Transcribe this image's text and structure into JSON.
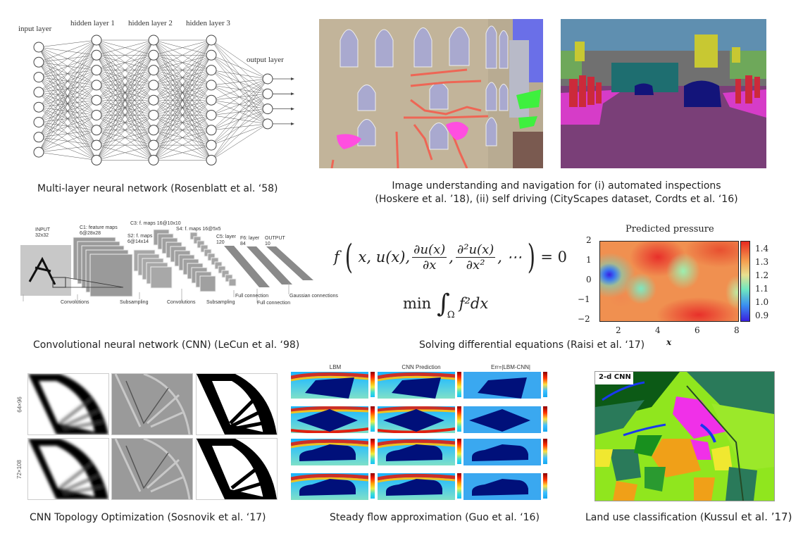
{
  "panels": {
    "mlp": {
      "caption": "Multi-layer neural network (Rosenblatt et al. ‘58)",
      "layer_labels": [
        "input layer",
        "hidden layer 1",
        "hidden layer 2",
        "hidden layer 3",
        "output layer"
      ],
      "node_counts": [
        8,
        9,
        9,
        9,
        4
      ]
    },
    "image_understanding": {
      "caption_line1": "Image understanding and navigation for (i) automated inspections",
      "caption_line2": "(Hoskere et al. ’18), (ii) self driving (CityScapes dataset, Cordts et al. ‘16)",
      "images": [
        "building-crack-segmentation-image",
        "cityscapes-street-segmentation-image"
      ]
    },
    "cnn": {
      "caption": "Convolutional neural network (CNN) (LeCun et al. ‘98)",
      "labels": {
        "input": "INPUT",
        "input_size": "32x32",
        "c1": "C1: feature maps",
        "c1_size": "6@28x28",
        "s2": "S2: f. maps",
        "s2_size": "6@14x14",
        "c3": "C3: f. maps 16@10x10",
        "s4": "S4: f. maps 16@5x5",
        "c5": "C5: layer",
        "c5_size": "120",
        "f6": "F6: layer",
        "f6_size": "84",
        "output": "OUTPUT",
        "output_size": "10",
        "op_conv1": "Convolutions",
        "op_sub1": "Subsampling",
        "op_conv2": "Convolutions",
        "op_sub2": "Subsampling",
        "op_full1": "Full connection",
        "op_full2": "Full connection",
        "op_gauss": "Gaussian connections"
      }
    },
    "pde": {
      "caption": "Solving differential equations (Raisi et al. ‘17)",
      "equation1_lhs": "f",
      "equation1_args": "x, u(x),",
      "equation1_frac1_num": "∂u(x)",
      "equation1_frac1_den": "∂x",
      "equation1_frac2_num": "∂²u(x)",
      "equation1_frac2_den": "∂x²",
      "equation1_tail": ", ⋯",
      "equation1_rhs": "= 0",
      "equation2_min": "min",
      "equation2_integrand": "f²dx",
      "equation2_domain": "Ω"
    },
    "topology": {
      "caption": "CNN Topology Optimization (Sosnovik et al. ‘17)",
      "row_labels": [
        "64×96",
        "72×108"
      ]
    },
    "flow": {
      "caption": "Steady flow approximation (Guo et al. ‘16)",
      "column_titles": [
        "LBM",
        "CNN Prediction",
        "Err=|LBM-CNN|"
      ],
      "shapes": [
        "wedge",
        "diamond",
        "car",
        "car"
      ]
    },
    "landuse": {
      "caption_prefix": "Land use classification (",
      "caption_authors": "Kussul et al. ’17)",
      "map_label": "2-d CNN"
    }
  },
  "chart_data": {
    "type": "heatmap",
    "title": "Predicted pressure",
    "xlabel": "x",
    "ylabel": "",
    "xlim": [
      1,
      8
    ],
    "ylim": [
      -2,
      2
    ],
    "x_ticks": [
      "2",
      "4",
      "6",
      "8"
    ],
    "y_ticks": [
      "2",
      "1",
      "0",
      "−1",
      "−2"
    ],
    "colorbar": {
      "ticks": [
        "1.4",
        "1.3",
        "1.2",
        "1.1",
        "1.0",
        "0.9"
      ],
      "range": [
        0.88,
        1.45
      ],
      "colormap": "rainbow"
    },
    "features": [
      {
        "desc": "low-pressure minimum",
        "x": 1.4,
        "y": 0.3,
        "value": 0.9
      },
      {
        "desc": "local low",
        "x": 3.0,
        "y": -0.4,
        "value": 1.15
      },
      {
        "desc": "local low",
        "x": 5.3,
        "y": 0.5,
        "value": 1.2
      },
      {
        "desc": "local low",
        "x": 8.0,
        "y": -0.4,
        "value": 1.25
      },
      {
        "desc": "high",
        "x": 3.7,
        "y": 1.2,
        "value": 1.43
      },
      {
        "desc": "high",
        "x": 6.0,
        "y": -1.7,
        "value": 1.44
      }
    ]
  }
}
